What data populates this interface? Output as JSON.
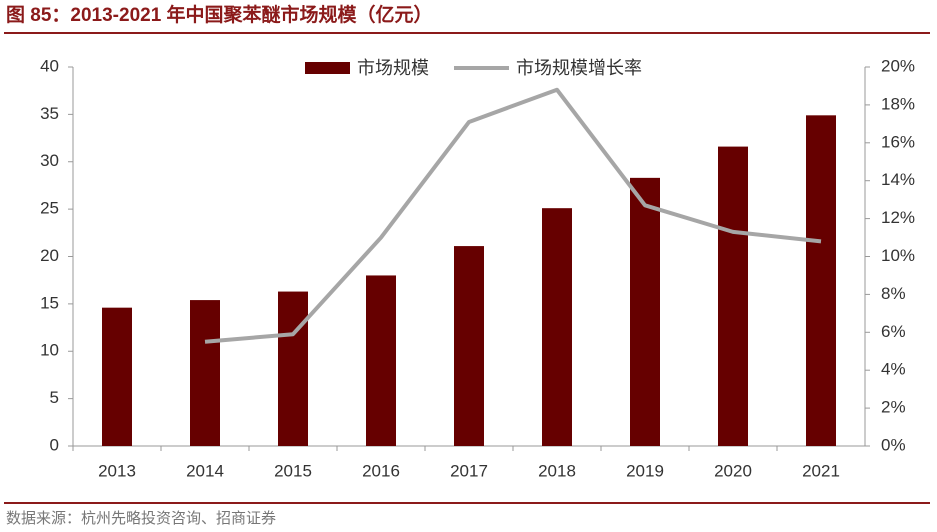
{
  "chart_data": {
    "type": "bar",
    "title": "图 85：2013-2021 年中国聚苯醚市场规模（亿元）",
    "source": "数据来源：杭州先略投资咨询、招商证券",
    "categories": [
      "2013",
      "2014",
      "2015",
      "2016",
      "2017",
      "2018",
      "2019",
      "2020",
      "2021"
    ],
    "series": [
      {
        "name": "市场规模",
        "type": "bar",
        "color": "#660000",
        "values": [
          14.6,
          15.4,
          16.3,
          18.0,
          21.1,
          25.1,
          28.3,
          31.6,
          34.9
        ]
      },
      {
        "name": "市场规模增长率",
        "type": "line",
        "axis": "y2",
        "color": "#A6A6A6",
        "values": [
          null,
          5.5,
          5.9,
          11.0,
          17.1,
          18.8,
          12.7,
          11.3,
          10.8
        ]
      }
    ],
    "ylim": [
      0,
      40
    ],
    "yticks": [
      0,
      5,
      10,
      15,
      20,
      25,
      30,
      35,
      40
    ],
    "y2lim": [
      0,
      20
    ],
    "y2ticks": [
      {
        "value": 0,
        "label": "0%"
      },
      {
        "value": 2,
        "label": "2%"
      },
      {
        "value": 4,
        "label": "4%"
      },
      {
        "value": 6,
        "label": "6%"
      },
      {
        "value": 8,
        "label": "8%"
      },
      {
        "value": 10,
        "label": "10%"
      },
      {
        "value": 12,
        "label": "12%"
      },
      {
        "value": 14,
        "label": "14%"
      },
      {
        "value": 16,
        "label": "16%"
      },
      {
        "value": 18,
        "label": "18%"
      },
      {
        "value": 20,
        "label": "20%"
      }
    ],
    "grid": false
  }
}
